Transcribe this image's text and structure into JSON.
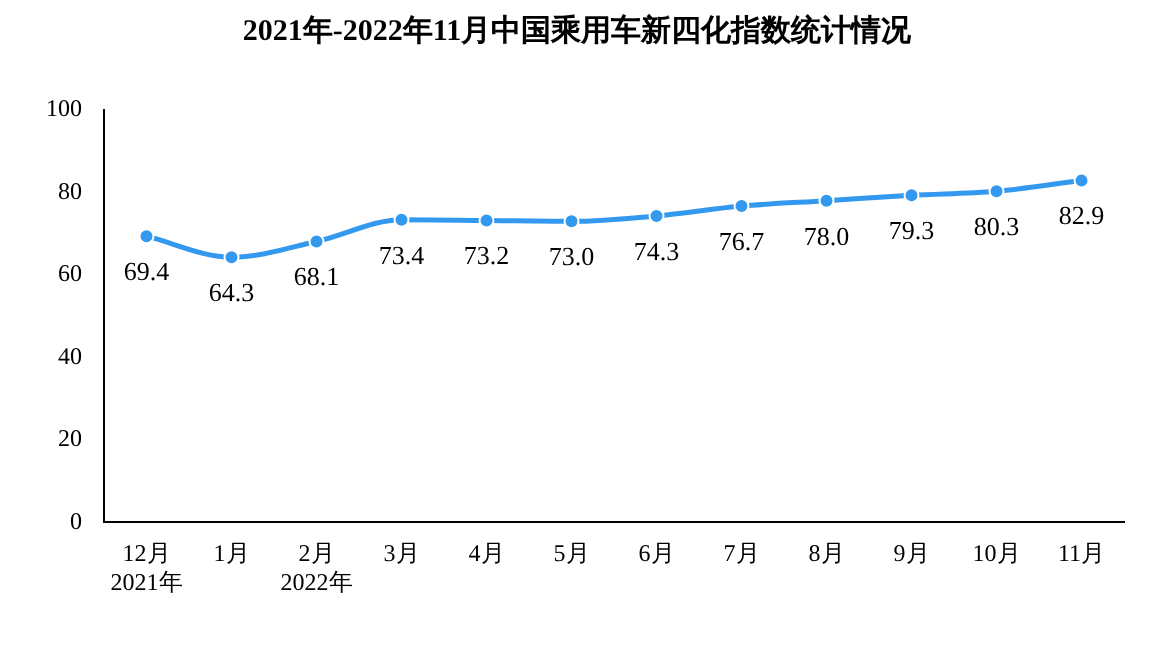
{
  "chart_data": {
    "type": "line",
    "title": "2021年-2022年11月中国乘用车新四化指数统计情况",
    "categories": [
      "12月\n2021年",
      "1月",
      "2月\n2022年",
      "3月",
      "4月",
      "5月",
      "6月",
      "7月",
      "8月",
      "9月",
      "10月",
      "11月"
    ],
    "series": [
      {
        "color": "#3399ee",
        "values": [
          69.4,
          64.3,
          68.1,
          73.4,
          73.2,
          73.0,
          74.3,
          76.7,
          78.0,
          79.3,
          80.3,
          82.9
        ],
        "value_labels": [
          "69.4",
          "64.3",
          "68.1",
          "73.4",
          "73.2",
          "73.0",
          "74.3",
          "76.7",
          "78.0",
          "79.3",
          "80.3",
          "82.9"
        ]
      }
    ],
    "ylim": [
      0,
      100
    ],
    "yticks": [
      0,
      20,
      40,
      60,
      80,
      100
    ],
    "grid": false,
    "legend": false,
    "marker": "circle",
    "line_style": "solid"
  }
}
